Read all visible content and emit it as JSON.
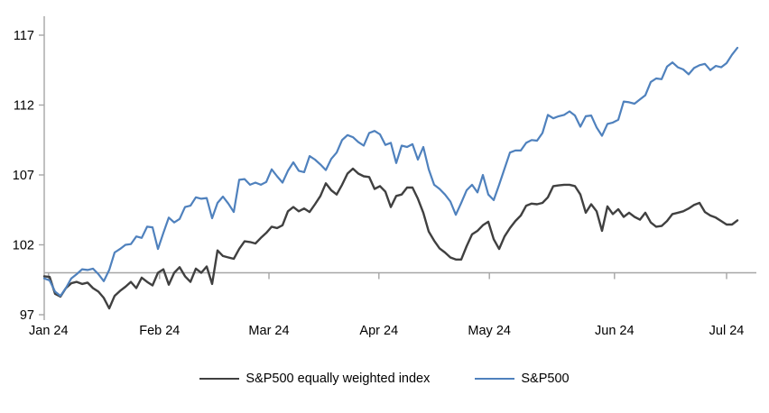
{
  "chart_data": {
    "type": "line",
    "title": "",
    "xlabel": "",
    "ylabel": "",
    "y_ticks": [
      97,
      102,
      107,
      112,
      117
    ],
    "ylim": [
      97,
      117
    ],
    "baseline_value": 100,
    "grid": false,
    "legend_position": "bottom-center",
    "x_tick_labels": [
      "Jan 24",
      "Feb 24",
      "Mar 24",
      "Apr 24",
      "May 24",
      "Jun 24",
      "Jul 24"
    ],
    "x_tick_indices": [
      0.8,
      21.3,
      41.5,
      61.8,
      82.2,
      105.3,
      126
    ],
    "x_range": [
      0,
      128
    ],
    "colors": {
      "axis": "#a6a6a6",
      "sp500": "#4f81bd",
      "sp500_equal_weight": "#404040",
      "text": "#000000"
    },
    "legend": [
      {
        "label": "S&P500 equally weighted index",
        "color": "#404040"
      },
      {
        "label": "S&P500",
        "color": "#4f81bd"
      }
    ],
    "series": [
      {
        "name": "S&P500 equally weighted index",
        "color": "#404040",
        "values": [
          99.75,
          99.7,
          98.5,
          98.3,
          98.9,
          99.25,
          99.35,
          99.2,
          99.3,
          98.9,
          98.65,
          98.2,
          97.45,
          98.35,
          98.7,
          99.0,
          99.35,
          98.9,
          99.65,
          99.35,
          99.1,
          100.0,
          100.25,
          99.15,
          100.0,
          100.4,
          99.75,
          99.35,
          100.3,
          100.0,
          100.45,
          99.2,
          101.6,
          101.2,
          101.1,
          101.0,
          101.7,
          102.25,
          102.2,
          102.1,
          102.5,
          102.85,
          103.3,
          103.2,
          103.4,
          104.4,
          104.7,
          104.4,
          104.6,
          104.35,
          104.9,
          105.5,
          106.4,
          105.9,
          105.6,
          106.3,
          107.1,
          107.45,
          107.1,
          106.9,
          106.85,
          106.0,
          106.2,
          105.8,
          104.7,
          105.5,
          105.6,
          106.1,
          106.1,
          105.3,
          104.3,
          102.95,
          102.3,
          101.75,
          101.45,
          101.1,
          100.95,
          100.95,
          101.9,
          102.75,
          103.0,
          103.4,
          103.65,
          102.4,
          101.7,
          102.6,
          103.2,
          103.7,
          104.1,
          104.8,
          104.95,
          104.9,
          105.0,
          105.4,
          106.2,
          106.25,
          106.3,
          106.3,
          106.2,
          105.6,
          104.3,
          104.9,
          104.4,
          103.0,
          104.75,
          104.2,
          104.55,
          104.0,
          104.3,
          104.0,
          103.8,
          104.3,
          103.6,
          103.3,
          103.35,
          103.7,
          104.2,
          104.3,
          104.4,
          104.6,
          104.85,
          105.0,
          104.35,
          104.1,
          103.95,
          103.7,
          103.45,
          103.45,
          103.75
        ]
      },
      {
        "name": "S&P500",
        "color": "#4f81bd",
        "values": [
          99.6,
          99.45,
          98.65,
          98.35,
          98.9,
          99.6,
          99.9,
          100.25,
          100.2,
          100.3,
          99.9,
          99.4,
          100.2,
          101.45,
          101.7,
          102.0,
          102.05,
          102.6,
          102.5,
          103.3,
          103.25,
          101.7,
          102.85,
          103.95,
          103.6,
          103.85,
          104.7,
          104.8,
          105.4,
          105.3,
          105.35,
          103.9,
          105.0,
          105.45,
          104.95,
          104.35,
          106.65,
          106.7,
          106.3,
          106.45,
          106.3,
          106.5,
          107.4,
          106.9,
          106.45,
          107.3,
          107.9,
          107.3,
          107.2,
          108.35,
          108.1,
          107.75,
          107.35,
          108.15,
          108.6,
          109.5,
          109.85,
          109.7,
          109.35,
          109.1,
          110.0,
          110.15,
          109.9,
          109.15,
          109.3,
          107.85,
          109.1,
          109.0,
          109.2,
          108.1,
          109.0,
          107.4,
          106.3,
          106.0,
          105.6,
          105.1,
          104.15,
          105.0,
          105.9,
          106.3,
          105.75,
          107.0,
          105.6,
          105.2,
          106.3,
          107.45,
          108.6,
          108.75,
          108.75,
          109.3,
          109.5,
          109.45,
          110.0,
          111.3,
          111.05,
          111.2,
          111.3,
          111.55,
          111.25,
          110.45,
          111.2,
          111.25,
          110.4,
          109.8,
          110.65,
          110.75,
          110.95,
          112.25,
          112.2,
          112.1,
          112.4,
          112.7,
          113.65,
          113.9,
          113.85,
          114.75,
          115.05,
          114.7,
          114.55,
          114.2,
          114.65,
          114.85,
          114.95,
          114.5,
          114.8,
          114.7,
          115.0,
          115.6,
          116.1
        ]
      }
    ]
  }
}
